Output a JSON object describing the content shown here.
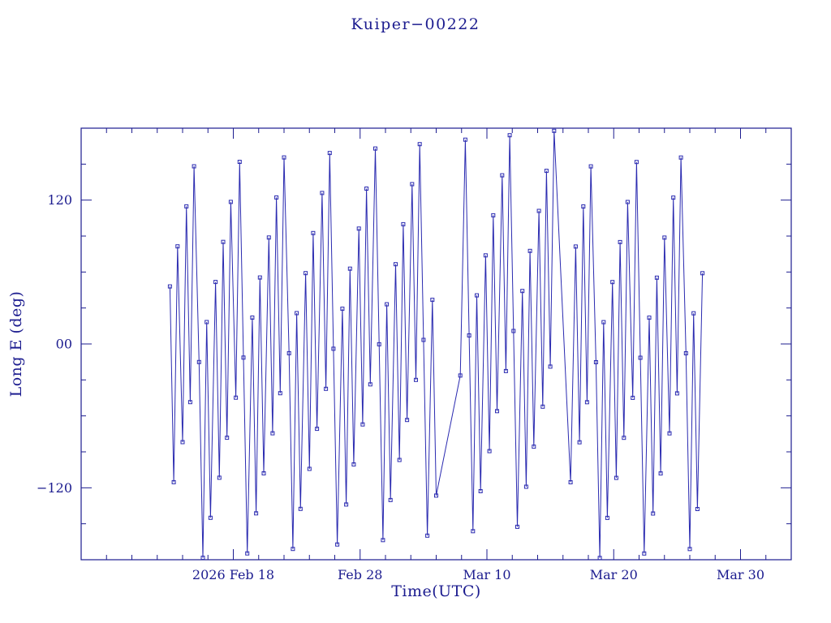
{
  "page": {
    "background": "#ffffff"
  },
  "chart_data": {
    "type": "line",
    "title": "Kuiper−00222",
    "xlabel": "Time(UTC)",
    "ylabel": "Long E (deg)",
    "x_unit": "days since 2026 Feb 06 00:00 UTC",
    "xlim": [
      0,
      56
    ],
    "ylim": [
      -180,
      180
    ],
    "grid": false,
    "legend": "none",
    "marker": "open-square",
    "line_width": 1,
    "colors": {
      "series": "#2a2ab0",
      "frame": "#1c1c8f",
      "text": "#1c1c8f",
      "background": "#ffffff"
    },
    "xticks": [
      {
        "value": 12,
        "label": "2026 Feb 18"
      },
      {
        "value": 22,
        "label": "Feb 28"
      },
      {
        "value": 32,
        "label": "Mar 10"
      },
      {
        "value": 42,
        "label": "Mar 20"
      },
      {
        "value": 52,
        "label": "Mar 30"
      }
    ],
    "x_minor_step": 2,
    "yticks": [
      {
        "value": -120,
        "label": "−120"
      },
      {
        "value": 0,
        "label": "00"
      },
      {
        "value": 120,
        "label": "120"
      }
    ],
    "y_minor_step": 30,
    "points": [
      [
        7.0,
        48.0
      ],
      [
        7.3,
        -115.3
      ],
      [
        7.6,
        81.4
      ],
      [
        8.0,
        -81.9
      ],
      [
        8.3,
        114.8
      ],
      [
        8.6,
        -48.5
      ],
      [
        8.9,
        148.2
      ],
      [
        9.3,
        -15.1
      ],
      [
        9.6,
        -178.4
      ],
      [
        9.9,
        18.3
      ],
      [
        10.2,
        -145.0
      ],
      [
        10.6,
        51.7
      ],
      [
        10.9,
        -111.6
      ],
      [
        11.2,
        85.1
      ],
      [
        11.5,
        -78.2
      ],
      [
        11.8,
        118.5
      ],
      [
        12.2,
        -44.8
      ],
      [
        12.5,
        151.9
      ],
      [
        12.8,
        -11.4
      ],
      [
        13.1,
        -174.7
      ],
      [
        13.5,
        22.0
      ],
      [
        13.8,
        -141.3
      ],
      [
        14.1,
        55.4
      ],
      [
        14.4,
        -107.9
      ],
      [
        14.8,
        88.8
      ],
      [
        15.1,
        -74.5
      ],
      [
        15.4,
        122.2
      ],
      [
        15.7,
        -41.1
      ],
      [
        16.0,
        155.6
      ],
      [
        16.4,
        -7.7
      ],
      [
        16.7,
        -171.0
      ],
      [
        17.0,
        25.7
      ],
      [
        17.3,
        -137.6
      ],
      [
        17.7,
        59.1
      ],
      [
        18.0,
        -104.2
      ],
      [
        18.3,
        92.5
      ],
      [
        18.6,
        -70.8
      ],
      [
        19.0,
        125.9
      ],
      [
        19.3,
        -37.4
      ],
      [
        19.6,
        159.3
      ],
      [
        19.9,
        -4.0
      ],
      [
        20.2,
        -167.3
      ],
      [
        20.6,
        29.4
      ],
      [
        20.9,
        -133.9
      ],
      [
        21.2,
        62.8
      ],
      [
        21.5,
        -100.5
      ],
      [
        21.9,
        96.2
      ],
      [
        22.2,
        -67.1
      ],
      [
        22.5,
        129.6
      ],
      [
        22.8,
        -33.7
      ],
      [
        23.2,
        163.0
      ],
      [
        23.5,
        -0.3
      ],
      [
        23.8,
        -163.6
      ],
      [
        24.1,
        33.1
      ],
      [
        24.4,
        -130.2
      ],
      [
        24.8,
        66.5
      ],
      [
        25.1,
        -96.8
      ],
      [
        25.4,
        99.9
      ],
      [
        25.7,
        -63.4
      ],
      [
        26.1,
        133.3
      ],
      [
        26.4,
        -30.0
      ],
      [
        26.7,
        166.7
      ],
      [
        27.0,
        3.4
      ],
      [
        27.3,
        -159.9
      ],
      [
        27.7,
        36.8
      ],
      [
        28.0,
        -126.5
      ],
      [
        29.9,
        -26.3
      ],
      [
        30.3,
        170.4
      ],
      [
        30.6,
        7.1
      ],
      [
        30.9,
        -156.2
      ],
      [
        31.2,
        40.5
      ],
      [
        31.5,
        -122.8
      ],
      [
        31.9,
        73.9
      ],
      [
        32.2,
        -89.4
      ],
      [
        32.5,
        107.3
      ],
      [
        32.8,
        -56.0
      ],
      [
        33.2,
        140.7
      ],
      [
        33.5,
        -22.6
      ],
      [
        33.8,
        174.1
      ],
      [
        34.1,
        10.8
      ],
      [
        34.4,
        -152.5
      ],
      [
        34.8,
        44.2
      ],
      [
        35.1,
        -119.1
      ],
      [
        35.4,
        77.6
      ],
      [
        35.7,
        -85.7
      ],
      [
        36.1,
        111.0
      ],
      [
        36.4,
        -52.3
      ],
      [
        36.7,
        144.4
      ],
      [
        37.0,
        -18.9
      ],
      [
        37.3,
        177.8
      ],
      [
        38.6,
        -115.4
      ],
      [
        39.0,
        81.3
      ],
      [
        39.3,
        -82.0
      ],
      [
        39.6,
        114.7
      ],
      [
        39.9,
        -48.6
      ],
      [
        40.2,
        148.1
      ],
      [
        40.6,
        -15.2
      ],
      [
        40.9,
        -178.5
      ],
      [
        41.2,
        18.2
      ],
      [
        41.5,
        -145.1
      ],
      [
        41.9,
        51.6
      ],
      [
        42.2,
        -111.7
      ],
      [
        42.5,
        85.0
      ],
      [
        42.8,
        -78.3
      ],
      [
        43.1,
        118.4
      ],
      [
        43.5,
        -44.9
      ],
      [
        43.8,
        151.8
      ],
      [
        44.1,
        -11.5
      ],
      [
        44.4,
        -174.8
      ],
      [
        44.8,
        21.9
      ],
      [
        45.1,
        -141.4
      ],
      [
        45.4,
        55.3
      ],
      [
        45.7,
        -108.0
      ],
      [
        46.0,
        88.7
      ],
      [
        46.4,
        -74.6
      ],
      [
        46.7,
        122.1
      ],
      [
        47.0,
        -41.2
      ],
      [
        47.3,
        155.5
      ],
      [
        47.7,
        -7.8
      ],
      [
        48.0,
        -171.1
      ],
      [
        48.3,
        25.6
      ],
      [
        48.6,
        -137.7
      ],
      [
        49.0,
        59.0
      ]
    ]
  }
}
